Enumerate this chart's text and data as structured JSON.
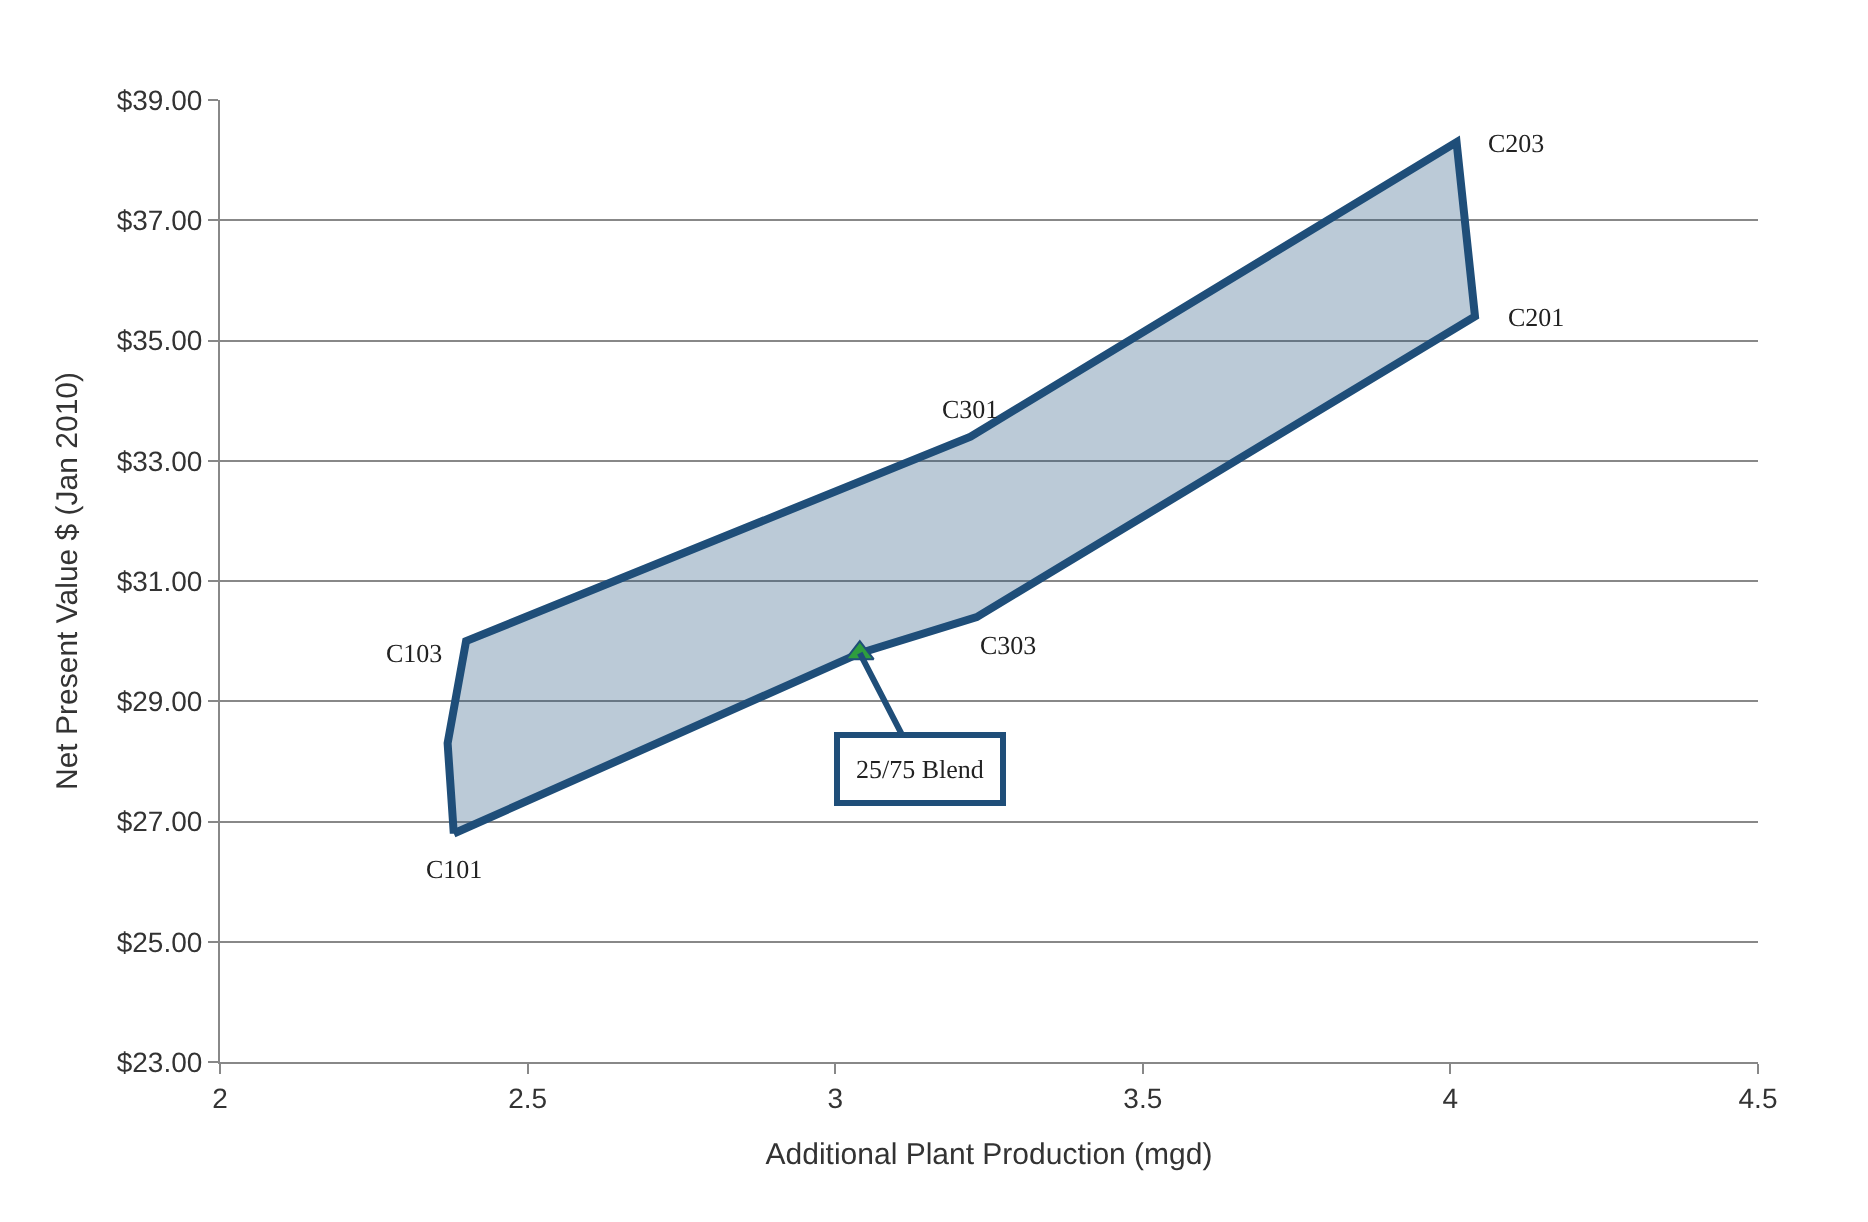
{
  "chart_data": {
    "type": "scatter",
    "xlabel": "Additional Plant Production (mgd)",
    "ylabel": "Net Present Value $ (Jan 2010)",
    "series": [
      {
        "type": "area",
        "color": "#1f4e79",
        "x": [
          2.38,
          2.37,
          2.4,
          3.22,
          4.01,
          4.04,
          3.23,
          3.04,
          2.38
        ],
        "values": [
          26.8,
          28.3,
          30.0,
          33.4,
          38.3,
          35.4,
          30.4,
          29.8,
          26.8
        ]
      },
      {
        "marker": "triangle",
        "color": "#2e9e3e",
        "x": [
          3.04
        ],
        "values": [
          29.8
        ]
      }
    ],
    "annotations": [
      {
        "text": "C101",
        "x": 2.38,
        "y": 26.8
      },
      {
        "text": "C103",
        "x": 2.4,
        "y": 30.0
      },
      {
        "text": "C301",
        "x": 3.22,
        "y": 33.4
      },
      {
        "text": "C203",
        "x": 4.01,
        "y": 38.3
      },
      {
        "text": "C201",
        "x": 4.04,
        "y": 35.4
      },
      {
        "text": "C303",
        "x": 3.23,
        "y": 30.4
      },
      {
        "text": "25/75 Blend",
        "x": 3.04,
        "y": 29.8
      }
    ],
    "xlim": [
      2,
      4.5
    ],
    "xticks": [
      2,
      2.5,
      3,
      3.5,
      4,
      4.5
    ],
    "ylim": [
      23,
      39
    ],
    "yticks": [
      {
        "value": 23,
        "label": "$23.00"
      },
      {
        "value": 25,
        "label": "$25.00"
      },
      {
        "value": 27,
        "label": "$27.00"
      },
      {
        "value": 29,
        "label": "$29.00"
      },
      {
        "value": 31,
        "label": "$31.00"
      },
      {
        "value": 33,
        "label": "$33.00"
      },
      {
        "value": 35,
        "label": "$35.00"
      },
      {
        "value": 37,
        "label": "$37.00"
      },
      {
        "value": 39,
        "label": "$39.00"
      }
    ],
    "grid": "y"
  }
}
